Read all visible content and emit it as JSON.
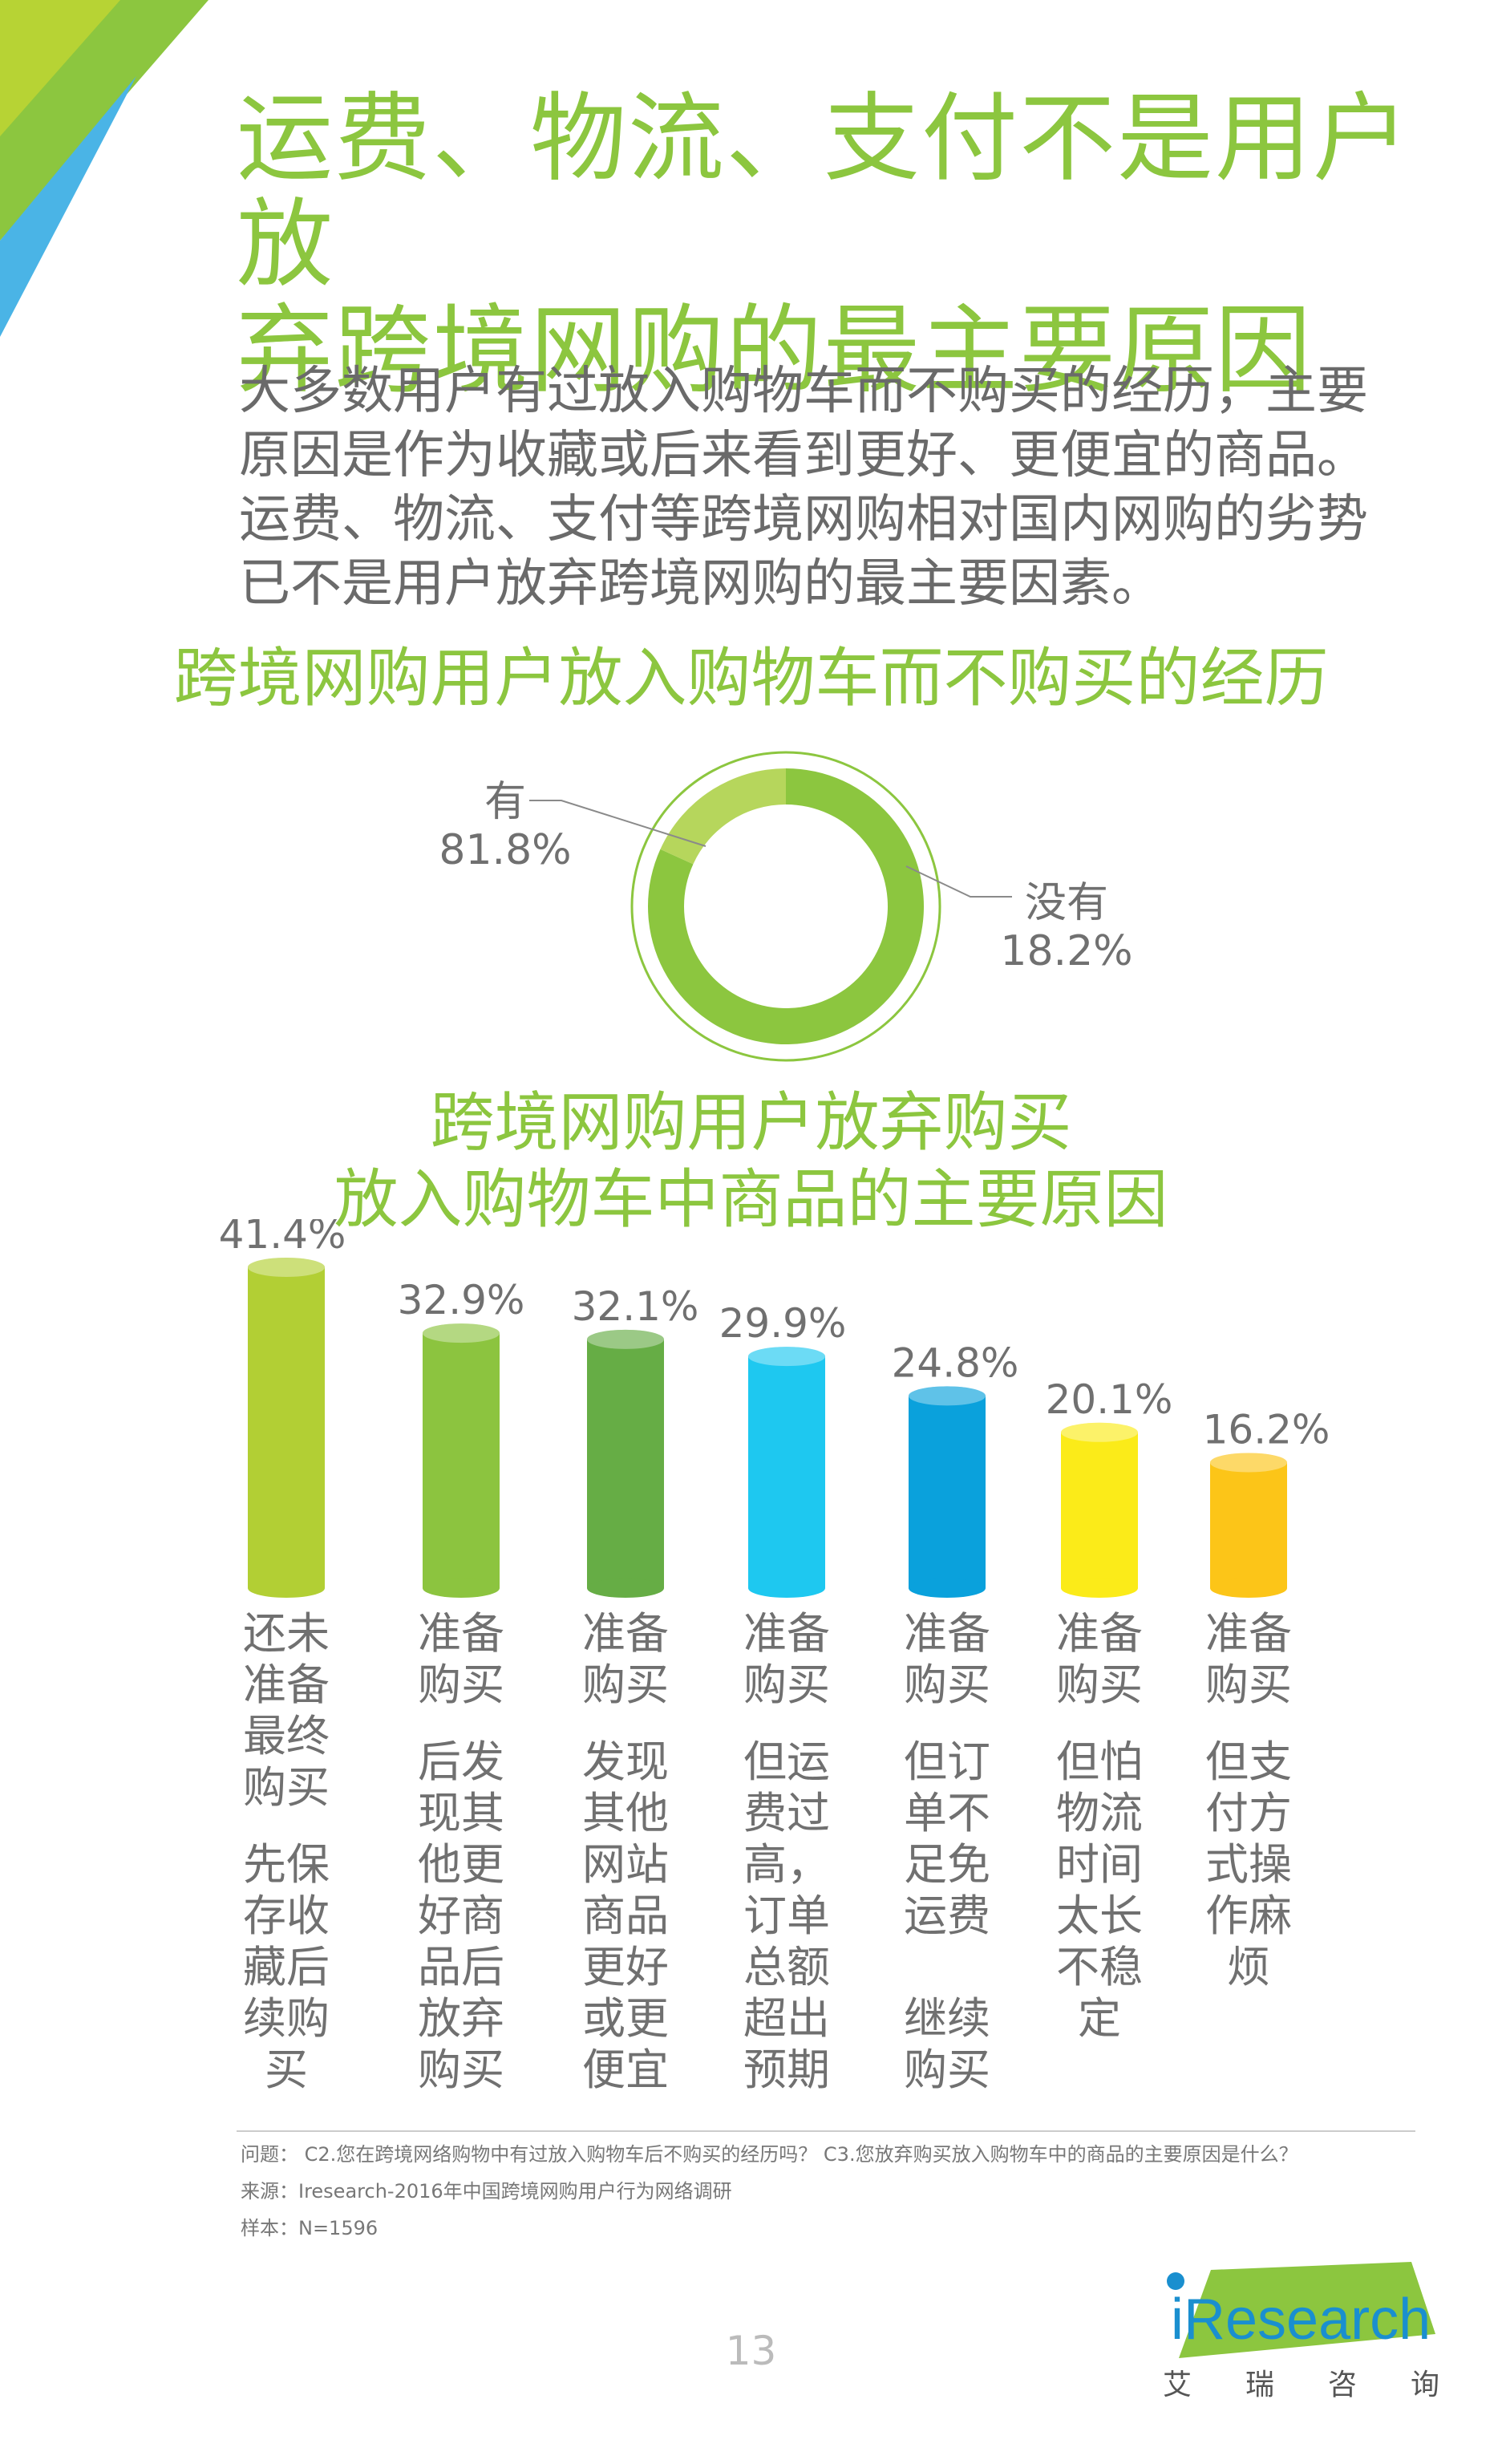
{
  "title_lines": [
    "运费、物流、支付不是用户放",
    "弃跨境网购的最主要原因"
  ],
  "intro_lines": [
    "大多数用户有过放入购物车而不购买的经历，主要",
    "原因是作为收藏或后来看到更好、更便宜的商品。",
    "运费、物流、支付等跨境网购相对国内网购的劣势",
    "已不是用户放弃跨境网购的最主要因素。"
  ],
  "donut_title": "跨境网购用户放入购物车而不购买的经历",
  "bar_title_lines": [
    "跨境网购用户放弃购买",
    "放入购物车中商品的主要原因"
  ],
  "chart_data": [
    {
      "type": "pie",
      "title": "跨境网购用户放入购物车而不购买的经历",
      "slices": [
        {
          "name": "有",
          "value": 81.8,
          "label": "81.8%",
          "color": "#8cc63f"
        },
        {
          "name": "没有",
          "value": 18.2,
          "label": "18.2%",
          "color": "#b6d65c"
        }
      ]
    },
    {
      "type": "bar",
      "title": "跨境网购用户放弃购买放入购物车中商品的主要原因",
      "categories": [
        "还未准备最终购买，先保存收藏后续购买",
        "准备购买后发现其他更好商品后放弃购买",
        "准备购买发现其他网站商品更好或更便宜",
        "准备购买但运费过高，订单总额超出预期",
        "准备购买但订单不足免运费，继续购买",
        "准备购买但怕物流时间太长不稳定",
        "准备购买但支付方式操作麻烦"
      ],
      "values": [
        41.4,
        32.9,
        32.1,
        29.9,
        24.8,
        20.1,
        16.2
      ],
      "value_labels": [
        "41.4%",
        "32.9%",
        "32.1%",
        "29.9%",
        "24.8%",
        "20.1%",
        "16.2%"
      ],
      "colors": [
        "#b2cf34",
        "#8cc43f",
        "#66ad45",
        "#1ec8f0",
        "#0aa1dc",
        "#fbeb19",
        "#fcc518"
      ],
      "label_columns": [
        {
          "top": "还未\n准备\n最终\n购买",
          "bottom": "先保\n存收\n藏后\n续购\n买"
        },
        {
          "top": "准备\n购买",
          "bottom": "后发\n现其\n他更\n好商\n品后\n放弃\n购买"
        },
        {
          "top": "准备\n购买",
          "bottom": "发现\n其他\n网站\n商品\n更好\n或更\n便宜"
        },
        {
          "top": "准备\n购买",
          "bottom": "但运\n费过\n高，\n订单\n总额\n超出\n预期"
        },
        {
          "top": "准备\n购买",
          "bottom": "但订\n单不\n足免\n运费\n\n继续\n购买"
        },
        {
          "top": "准备\n购买",
          "bottom": "但怕\n物流\n时间\n太长\n不稳\n定"
        },
        {
          "top": "准备\n购买",
          "bottom": "但支\n付方\n式操\n作麻\n烦"
        }
      ]
    }
  ],
  "footer": {
    "question": "问题： C2.您在跨境网络购物中有过放入购物车后不购买的经历吗？ C3.您放弃购买放入购物车中的商品的主要原因是什么？",
    "source": "来源：Iresearch-2016年中国跨境网购用户行为网络调研",
    "sample": "样本：N=1596"
  },
  "page_number": "13",
  "logo": {
    "text": "iResearch",
    "sub_chars": [
      "艾",
      "瑞",
      "咨",
      "询"
    ]
  }
}
